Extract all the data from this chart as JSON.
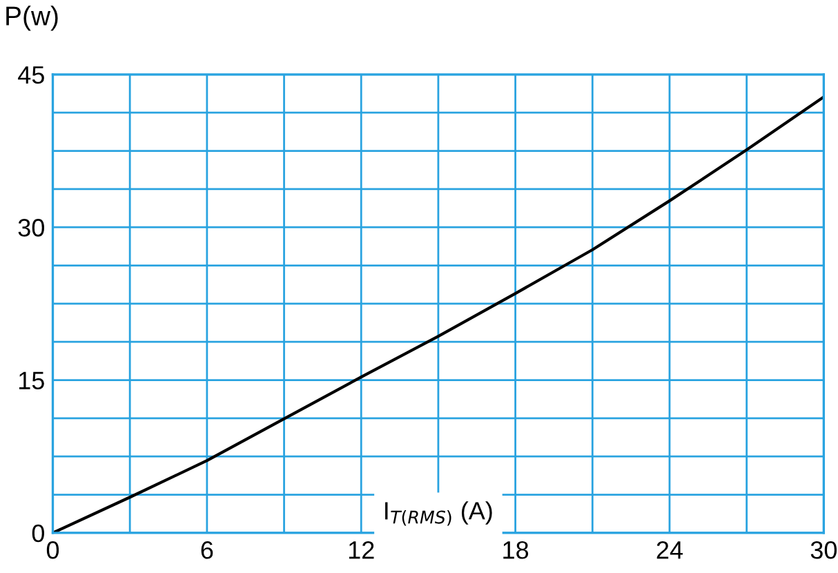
{
  "chart_data": {
    "type": "line",
    "xlabel": "I$_{T(RMS)}$ (A)",
    "ylabel": "P(w)",
    "x": [
      0,
      3,
      6,
      9,
      12,
      15,
      18,
      21,
      24,
      27,
      30
    ],
    "series": [
      {
        "color": "#000000",
        "values": [
          0,
          3.5,
          7.1,
          11.2,
          15.3,
          19.3,
          23.5,
          27.8,
          32.6,
          37.6,
          42.8
        ]
      }
    ],
    "xlim": [
      0,
      30
    ],
    "ylim": [
      0,
      45
    ],
    "xticks": [
      0,
      {
        "value": 3,
        "label": null
      },
      6,
      {
        "value": 9,
        "label": null
      },
      12,
      {
        "value": 15,
        "label": null
      },
      18,
      {
        "value": 21,
        "label": null
      },
      24,
      {
        "value": 27,
        "label": null
      },
      30
    ],
    "yticks": [
      0,
      {
        "value": 3.75,
        "label": null
      },
      {
        "value": 7.5,
        "label": null
      },
      {
        "value": 11.25,
        "label": null
      },
      15,
      {
        "value": 18.75,
        "label": null
      },
      {
        "value": 22.5,
        "label": null
      },
      {
        "value": 26.25,
        "label": null
      },
      30,
      {
        "value": 33.75,
        "label": null
      },
      {
        "value": 37.5,
        "label": null
      },
      {
        "value": 41.25,
        "label": null
      },
      45
    ],
    "grid": true,
    "marker": "none",
    "line_style": "solid"
  }
}
